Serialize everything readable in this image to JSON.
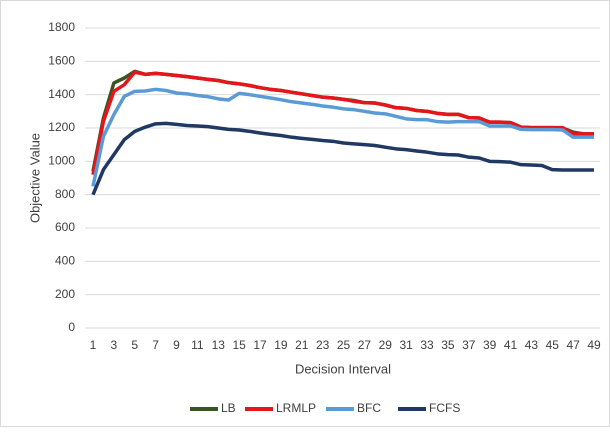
{
  "chart_data": {
    "type": "line",
    "x_label": "Decision Interval",
    "y_label": "Objective Value",
    "x": [
      1,
      2,
      3,
      4,
      5,
      6,
      7,
      8,
      9,
      10,
      11,
      12,
      13,
      14,
      15,
      16,
      17,
      18,
      19,
      20,
      21,
      22,
      23,
      24,
      25,
      26,
      27,
      28,
      29,
      30,
      31,
      32,
      33,
      34,
      35,
      36,
      37,
      38,
      39,
      40,
      41,
      42,
      43,
      44,
      45,
      46,
      47,
      48,
      49
    ],
    "xlim": [
      1,
      49
    ],
    "xticks": [
      1,
      3,
      5,
      7,
      9,
      11,
      13,
      15,
      17,
      19,
      21,
      23,
      25,
      27,
      29,
      31,
      33,
      35,
      37,
      39,
      41,
      43,
      45,
      47,
      49
    ],
    "ylim": [
      0,
      1800
    ],
    "yticks": [
      0,
      200,
      400,
      600,
      800,
      1000,
      1200,
      1400,
      1600,
      1800
    ],
    "grid": true,
    "legend": "bottom",
    "series": [
      {
        "name": "LB",
        "color": "#375623",
        "values": [
          940,
          1260,
          1470,
          1500,
          1540,
          1522,
          1528,
          1522,
          1515,
          1508,
          1500,
          1492,
          1485,
          1472,
          1465,
          1455,
          1442,
          1432,
          1425,
          1415,
          1405,
          1395,
          1385,
          1380,
          1372,
          1365,
          1352,
          1350,
          1338,
          1322,
          1318,
          1305,
          1300,
          1288,
          1282,
          1282,
          1262,
          1260,
          1235,
          1235,
          1232,
          1205,
          1202,
          1202,
          1202,
          1200,
          1175,
          1165,
          1165
        ]
      },
      {
        "name": "LRMLP",
        "color": "#e8141b",
        "values": [
          920,
          1240,
          1420,
          1460,
          1535,
          1522,
          1528,
          1522,
          1515,
          1508,
          1500,
          1492,
          1485,
          1472,
          1465,
          1455,
          1442,
          1432,
          1425,
          1415,
          1405,
          1395,
          1385,
          1380,
          1372,
          1360,
          1352,
          1350,
          1338,
          1322,
          1318,
          1305,
          1300,
          1288,
          1282,
          1282,
          1262,
          1260,
          1235,
          1235,
          1232,
          1205,
          1202,
          1202,
          1202,
          1202,
          1165,
          1165,
          1165
        ]
      },
      {
        "name": "BFC",
        "color": "#5b9bd5",
        "values": [
          850,
          1150,
          1280,
          1390,
          1420,
          1422,
          1432,
          1425,
          1410,
          1405,
          1395,
          1388,
          1375,
          1368,
          1408,
          1400,
          1390,
          1380,
          1370,
          1358,
          1350,
          1342,
          1332,
          1325,
          1315,
          1310,
          1300,
          1290,
          1285,
          1270,
          1255,
          1250,
          1250,
          1238,
          1235,
          1238,
          1238,
          1238,
          1212,
          1212,
          1212,
          1192,
          1190,
          1190,
          1190,
          1188,
          1145,
          1145,
          1145
        ]
      },
      {
        "name": "FCFS",
        "color": "#203864",
        "values": [
          800,
          950,
          1040,
          1130,
          1180,
          1205,
          1225,
          1228,
          1222,
          1215,
          1212,
          1208,
          1200,
          1192,
          1188,
          1180,
          1170,
          1162,
          1155,
          1145,
          1138,
          1132,
          1125,
          1120,
          1110,
          1105,
          1100,
          1095,
          1085,
          1075,
          1070,
          1062,
          1055,
          1045,
          1040,
          1038,
          1025,
          1020,
          1000,
          998,
          995,
          980,
          978,
          975,
          950,
          948,
          948,
          948,
          948
        ]
      }
    ]
  }
}
